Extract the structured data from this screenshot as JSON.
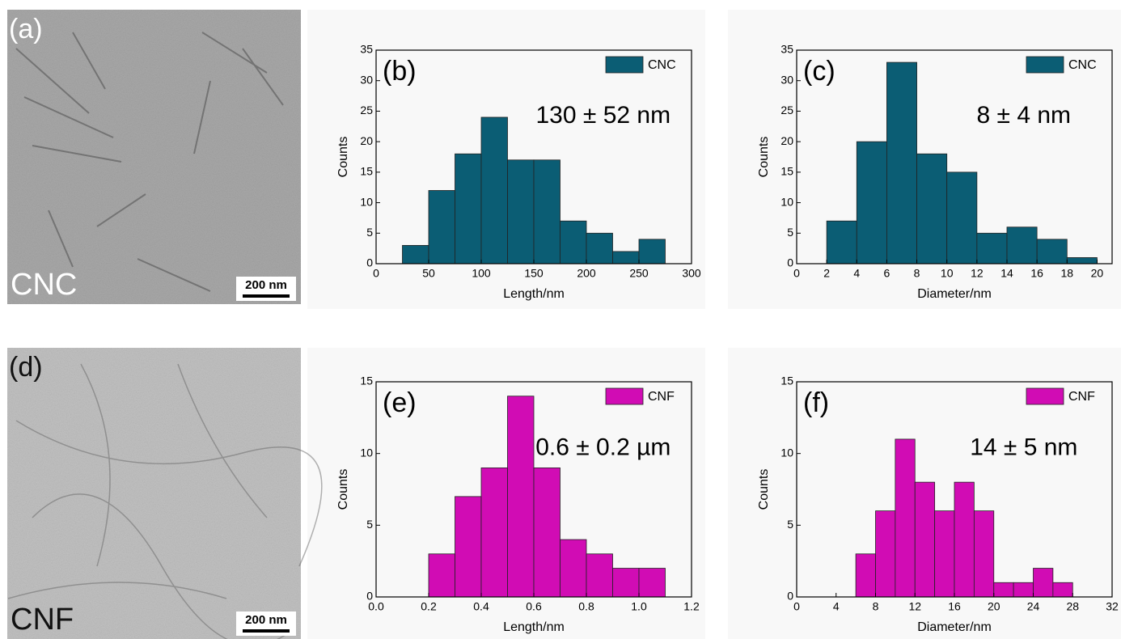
{
  "images": [
    {
      "label": "(a)",
      "caption": "CNC",
      "scale": "200 nm",
      "shade": "#a9a9a9"
    },
    {
      "label": "(d)",
      "caption": "CNF",
      "scale": "200 nm",
      "shade": "#c2c2c2"
    }
  ],
  "chart_data": [
    {
      "type": "histogram",
      "panel": "(b)",
      "annotation": "130 ± 52 nm",
      "x_label": "Length/nm",
      "y_label": "Counts",
      "series": [
        {
          "name": "CNC",
          "color": "#0b5d74",
          "values": [
            3,
            12,
            18,
            24,
            17,
            17,
            7,
            5,
            2,
            4
          ]
        }
      ],
      "bins": [
        25,
        50,
        75,
        100,
        125,
        150,
        175,
        200,
        225,
        250,
        275
      ],
      "xlim": [
        0,
        300
      ],
      "xticks": [
        0,
        50,
        100,
        150,
        200,
        250,
        300
      ],
      "ylim": [
        0,
        35
      ],
      "yticks": [
        0,
        5,
        10,
        15,
        20,
        25,
        30,
        35
      ],
      "legend": "upper right"
    },
    {
      "type": "histogram",
      "panel": "(c)",
      "annotation": "8 ± 4 nm",
      "x_label": "Diameter/nm",
      "y_label": "Counts",
      "series": [
        {
          "name": "CNC",
          "color": "#0b5d74",
          "values": [
            7,
            20,
            33,
            18,
            15,
            5,
            6,
            4,
            1
          ]
        }
      ],
      "bins": [
        2,
        4,
        6,
        8,
        10,
        12,
        14,
        16,
        18,
        20
      ],
      "xlim": [
        0,
        21
      ],
      "xticks": [
        0,
        2,
        4,
        6,
        8,
        10,
        12,
        14,
        16,
        18,
        20
      ],
      "ylim": [
        0,
        35
      ],
      "yticks": [
        0,
        5,
        10,
        15,
        20,
        25,
        30,
        35
      ],
      "legend": "upper right"
    },
    {
      "type": "histogram",
      "panel": "(e)",
      "annotation": "0.6 ± 0.2 µm",
      "x_label": "Length/nm",
      "y_label": "Counts",
      "series": [
        {
          "name": "CNF",
          "color": "#d10cb4",
          "values": [
            3,
            7,
            9,
            14,
            9,
            4,
            3,
            2,
            2
          ]
        }
      ],
      "bins": [
        0.2,
        0.3,
        0.4,
        0.5,
        0.6,
        0.7,
        0.8,
        0.9,
        1.0,
        1.1
      ],
      "xlim": [
        0,
        1.2
      ],
      "xticks": [
        {
          "value": 0,
          "label": "0.0"
        },
        0.2,
        0.4,
        0.6,
        0.8,
        {
          "value": 1,
          "label": "1.0"
        },
        1.2
      ],
      "ylim": [
        0,
        15
      ],
      "yticks": [
        0,
        5,
        10,
        15
      ],
      "legend": "upper right"
    },
    {
      "type": "histogram",
      "panel": "(f)",
      "annotation": "14 ± 5 nm",
      "x_label": "Diameter/nm",
      "y_label": "Counts",
      "series": [
        {
          "name": "CNF",
          "color": "#d10cb4",
          "values": [
            3,
            6,
            11,
            8,
            6,
            8,
            6,
            1,
            1,
            2,
            1
          ]
        }
      ],
      "bins": [
        6,
        8,
        10,
        12,
        14,
        16,
        18,
        20,
        22,
        24,
        26,
        28
      ],
      "xlim": [
        0,
        32
      ],
      "xticks": [
        0,
        4,
        8,
        12,
        16,
        20,
        24,
        28,
        32
      ],
      "ylim": [
        0,
        15
      ],
      "yticks": [
        0,
        5,
        10,
        15
      ],
      "legend": "upper right"
    }
  ]
}
